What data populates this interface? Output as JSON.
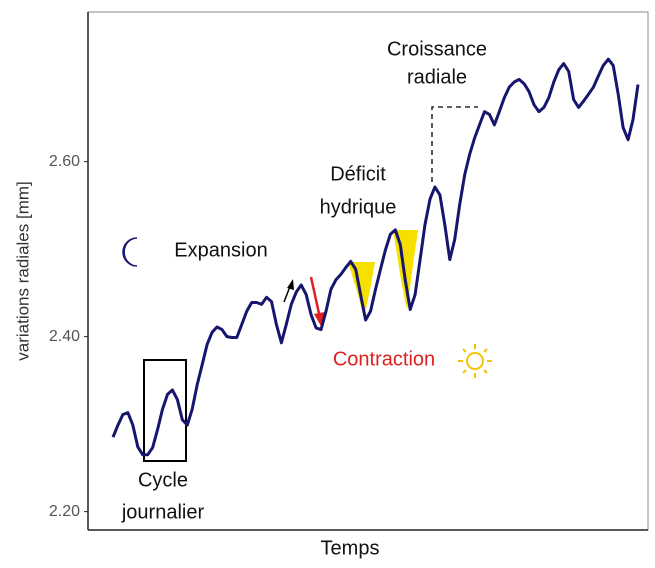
{
  "chart_data": {
    "type": "line",
    "xlabel": "Temps",
    "ylabel": "variations radiales [mm]",
    "annotations": [
      "Croissance",
      "radiale",
      "Déficit",
      "hydrique",
      "Expansion",
      "Contraction",
      "Cycle",
      "journalier"
    ],
    "categories": [
      null,
      null,
      null,
      null,
      null,
      null,
      null,
      null,
      null,
      null,
      null,
      null,
      null,
      null,
      null,
      null,
      null,
      null,
      null,
      null,
      null,
      null,
      null,
      null,
      null,
      null,
      null,
      null,
      null,
      null,
      null,
      null,
      null,
      null,
      null,
      null,
      null,
      null,
      null,
      null,
      null,
      null,
      null,
      null,
      null,
      null,
      null,
      null,
      null,
      null,
      null,
      null,
      null,
      null,
      null,
      null,
      null,
      null,
      null,
      null,
      null,
      null,
      null,
      null,
      null,
      null,
      null,
      null,
      null,
      null,
      null,
      null,
      null,
      null,
      null,
      null,
      null,
      null,
      null,
      null,
      null,
      null,
      null,
      null,
      null,
      null,
      null,
      null,
      null,
      null,
      null,
      null,
      null,
      null,
      null,
      null,
      null,
      null,
      null,
      null,
      null,
      null,
      null,
      null,
      null,
      null,
      null
    ],
    "series": [
      {
        "color": "#16166e",
        "values": [
          2.285,
          2.299,
          2.311,
          2.313,
          2.299,
          2.274,
          2.265,
          2.265,
          2.273,
          2.294,
          2.317,
          2.334,
          2.339,
          2.328,
          2.305,
          2.299,
          2.317,
          2.345,
          2.368,
          2.391,
          2.405,
          2.411,
          2.408,
          2.4,
          2.399,
          2.399,
          2.414,
          2.429,
          2.439,
          2.439,
          2.437,
          2.445,
          2.44,
          2.414,
          2.393,
          2.414,
          2.437,
          2.451,
          2.459,
          2.448,
          2.425,
          2.41,
          2.408,
          2.429,
          2.454,
          2.465,
          2.471,
          2.479,
          2.486,
          2.477,
          2.448,
          2.419,
          2.429,
          2.454,
          2.477,
          2.499,
          2.517,
          2.522,
          2.505,
          2.465,
          2.431,
          2.448,
          2.488,
          2.528,
          2.557,
          2.571,
          2.562,
          2.528,
          2.488,
          2.511,
          2.551,
          2.585,
          2.608,
          2.627,
          2.642,
          2.657,
          2.654,
          2.642,
          2.657,
          2.673,
          2.685,
          2.691,
          2.694,
          2.689,
          2.68,
          2.665,
          2.657,
          2.662,
          2.673,
          2.691,
          2.705,
          2.712,
          2.703,
          2.671,
          2.662,
          2.669,
          2.677,
          2.685,
          2.698,
          2.71,
          2.717,
          2.71,
          2.677,
          2.639,
          2.625,
          2.648,
          2.688
        ]
      }
    ],
    "ylim": [
      2.179,
      2.771
    ],
    "yticks": [
      {
        "value": 2.2,
        "label": "2.20"
      },
      {
        "value": 2.4,
        "label": "2.40"
      },
      {
        "value": 2.6,
        "label": "2.60"
      }
    ],
    "grid": false
  }
}
